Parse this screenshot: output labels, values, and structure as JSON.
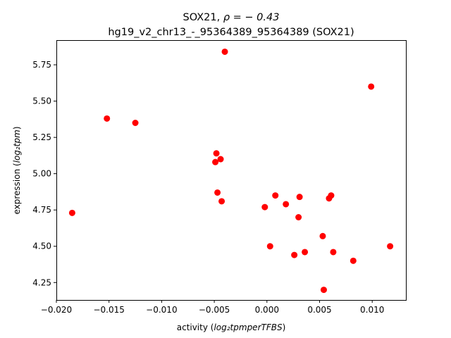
{
  "chart_data": {
    "type": "scatter",
    "title_line1": "SOX21, ",
    "title_rho": "ρ = − 0.43",
    "title_line2": "hg19_v2_chr13_-_95364389_95364389 (SOX21)",
    "xlabel_prefix": "activity (",
    "xlabel_math": "log₂tpmperTFBS",
    "xlabel_suffix": ")",
    "ylabel_prefix": "expression (",
    "ylabel_math": "log₂tpm",
    "ylabel_suffix": ")",
    "xlim": [
      -0.02,
      0.0132
    ],
    "ylim": [
      4.13,
      5.92
    ],
    "x_ticks": [
      -0.02,
      -0.015,
      -0.01,
      -0.005,
      0.0,
      0.005,
      0.01
    ],
    "x_tick_labels": [
      "−0.020",
      "−0.015",
      "−0.010",
      "−0.005",
      "0.000",
      "0.005",
      "0.010"
    ],
    "y_ticks": [
      4.25,
      4.5,
      4.75,
      5.0,
      5.25,
      5.5,
      5.75
    ],
    "y_tick_labels": [
      "4.25",
      "4.50",
      "4.75",
      "5.00",
      "5.25",
      "5.50",
      "5.75"
    ],
    "marker_color": "#ff0000",
    "grid": false,
    "points": [
      {
        "x": -0.004,
        "y": 5.84
      },
      {
        "x": 0.0099,
        "y": 5.6
      },
      {
        "x": -0.0152,
        "y": 5.38
      },
      {
        "x": -0.0125,
        "y": 5.35
      },
      {
        "x": -0.0048,
        "y": 5.14
      },
      {
        "x": -0.0044,
        "y": 5.1
      },
      {
        "x": -0.0049,
        "y": 5.08
      },
      {
        "x": -0.0047,
        "y": 4.87
      },
      {
        "x": -0.0043,
        "y": 4.81
      },
      {
        "x": 0.0008,
        "y": 4.85
      },
      {
        "x": 0.0031,
        "y": 4.84
      },
      {
        "x": 0.0061,
        "y": 4.85
      },
      {
        "x": 0.0059,
        "y": 4.83
      },
      {
        "x": 0.0018,
        "y": 4.79
      },
      {
        "x": -0.0002,
        "y": 4.77
      },
      {
        "x": -0.0185,
        "y": 4.73
      },
      {
        "x": 0.003,
        "y": 4.7
      },
      {
        "x": 0.0053,
        "y": 4.57
      },
      {
        "x": 0.0003,
        "y": 4.5
      },
      {
        "x": 0.0117,
        "y": 4.5
      },
      {
        "x": 0.0036,
        "y": 4.46
      },
      {
        "x": 0.0063,
        "y": 4.46
      },
      {
        "x": 0.0026,
        "y": 4.44
      },
      {
        "x": 0.0082,
        "y": 4.4
      },
      {
        "x": 0.0054,
        "y": 4.2
      }
    ]
  }
}
